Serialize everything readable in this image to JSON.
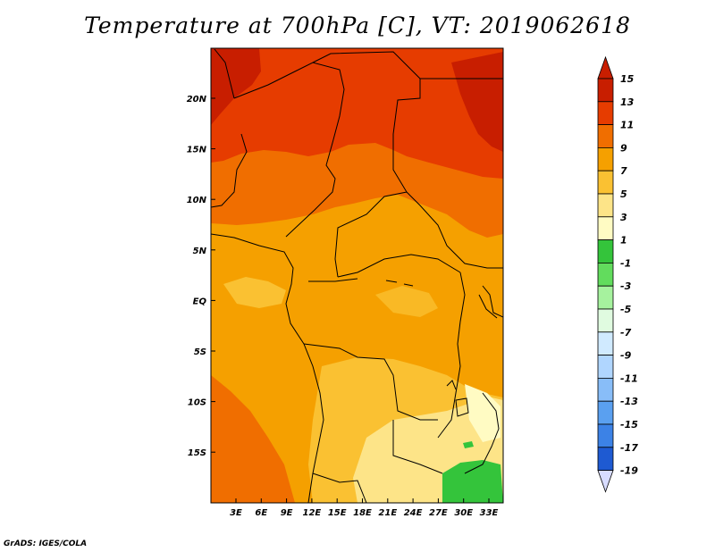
{
  "title": "Temperature at 700hPa [C], VT: 2019062618",
  "credit": "GrADS: IGES/COLA",
  "map": {
    "lat_ticks": [
      "20N",
      "15N",
      "10N",
      "5N",
      "EQ",
      "5S",
      "10S",
      "15S"
    ],
    "lon_ticks": [
      "3E",
      "6E",
      "9E",
      "12E",
      "15E",
      "18E",
      "21E",
      "24E",
      "27E",
      "30E",
      "33E"
    ]
  },
  "colorbar": {
    "levels": [
      {
        "label": "15",
        "color": "#c81e00"
      },
      {
        "label": "13",
        "color": "#e63c00"
      },
      {
        "label": "11",
        "color": "#f06e00"
      },
      {
        "label": "9",
        "color": "#f5a000"
      },
      {
        "label": "7",
        "color": "#fac132"
      },
      {
        "label": "5",
        "color": "#fde488"
      },
      {
        "label": "3",
        "color": "#fffbc3"
      },
      {
        "label": "1",
        "color": "#34c43b"
      },
      {
        "label": "-1",
        "color": "#62dc5d"
      },
      {
        "label": "-3",
        "color": "#a6f29e"
      },
      {
        "label": "-5",
        "color": "#e0fbe0"
      },
      {
        "label": "-7",
        "color": "#d0eaff"
      },
      {
        "label": "-9",
        "color": "#b0d6ff"
      },
      {
        "label": "-11",
        "color": "#88bdf8"
      },
      {
        "label": "-13",
        "color": "#5aa0f0"
      },
      {
        "label": "-15",
        "color": "#3c82e6"
      },
      {
        "label": "-17",
        "color": "#1e5ad2"
      },
      {
        "label": "-19",
        "color": "#1a33b4"
      }
    ],
    "top_cap_color": "#c81e00",
    "bottom_cap_color": "#d8dcff",
    "bottom_band_color": "#0a0a7a"
  }
}
